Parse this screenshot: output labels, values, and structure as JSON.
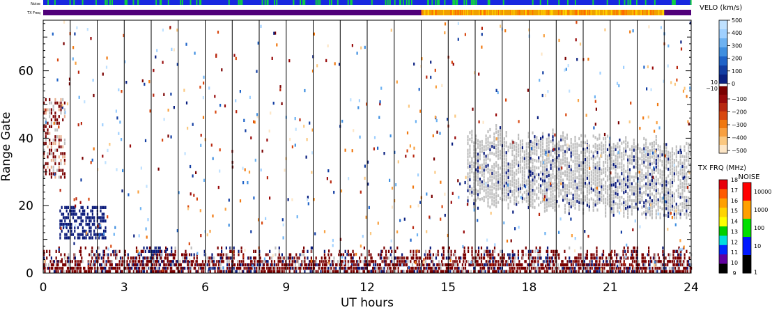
{
  "strips": {
    "noise_label": "Noise",
    "txfreq_label": "TX Freq"
  },
  "chart_data": {
    "type": "heatmap",
    "xlabel": "UT hours",
    "ylabel": "Range Gate",
    "xlim": [
      0,
      24
    ],
    "ylim": [
      0,
      75
    ],
    "x_ticks": [
      "0",
      "3",
      "6",
      "9",
      "12",
      "15",
      "18",
      "21",
      "24"
    ],
    "y_ticks": [
      "0",
      "20",
      "40",
      "60"
    ],
    "scan_boundaries_hours": [
      1,
      2,
      3,
      4,
      5,
      6,
      7,
      8,
      9,
      10,
      11,
      12,
      13,
      14,
      15,
      16,
      17,
      18,
      19,
      20,
      21,
      22,
      23
    ],
    "tx_frequency_strip": {
      "low_band_until_hour": 14,
      "high_band_hours": [
        14,
        23
      ]
    },
    "features": [
      {
        "name": "near-range scatter",
        "hours": [
          0,
          24
        ],
        "gates": [
          0,
          8
        ],
        "velocity_sign": "negative"
      },
      {
        "name": "early echo patch",
        "hours": [
          0,
          0.8
        ],
        "gates": [
          28,
          55
        ],
        "velocity_sign": "negative"
      },
      {
        "name": "blue patch",
        "hours": [
          0.6,
          2.3
        ],
        "gates": [
          10,
          20
        ],
        "velocity_sign": "positive"
      },
      {
        "name": "ground scatter band",
        "hours": [
          15.7,
          24
        ],
        "gates": [
          18,
          45
        ],
        "velocity_sign": "ground"
      }
    ],
    "velocity_colorbar": {
      "title": "VELO (km/s)",
      "positive_labels": [
        "500",
        "400",
        "300",
        "200",
        "100",
        "0"
      ],
      "threshold_labels": [
        "10",
        "−10"
      ],
      "negative_labels": [
        "−100",
        "−200",
        "−300",
        "−400",
        "−500"
      ],
      "positive_colors": [
        "#bfe1ff",
        "#9fd0ff",
        "#6db2f2",
        "#3f8fe0",
        "#1f63c8",
        "#123da2",
        "#0a2080"
      ],
      "negative_colors": [
        "#7a0000",
        "#980a0a",
        "#b82810",
        "#d84810",
        "#f07810",
        "#f8a040",
        "#fbc880",
        "#fde6c6"
      ]
    },
    "txfreq_colorbar": {
      "title": "TX FRQ (MHz)",
      "labels": [
        "18",
        "17",
        "16",
        "15",
        "14",
        "13",
        "12",
        "11",
        "10",
        "9"
      ],
      "colors": [
        "#e8000b",
        "#ff5a00",
        "#ffa000",
        "#ffd400",
        "#ffff00",
        "#00d000",
        "#00dede",
        "#0028ff",
        "#6000a0",
        "#000000"
      ]
    },
    "noise_colorbar": {
      "title": "NOISE",
      "labels": [
        "10000",
        "1000",
        "100",
        "10",
        "1"
      ],
      "colors": [
        "#ff0000",
        "#ffa000",
        "#00e000",
        "#0018ff",
        "#000000"
      ]
    },
    "colors": {
      "ground_scatter": "#bebebe",
      "positive_dark": "#0a1a7a",
      "negative_dark": "#7a0000",
      "scan_line": "#000000",
      "noise_strip": "#1828e0",
      "noise_spike": "#10d040",
      "tx_low": "#50007a",
      "tx_high": "#f0a000"
    }
  }
}
